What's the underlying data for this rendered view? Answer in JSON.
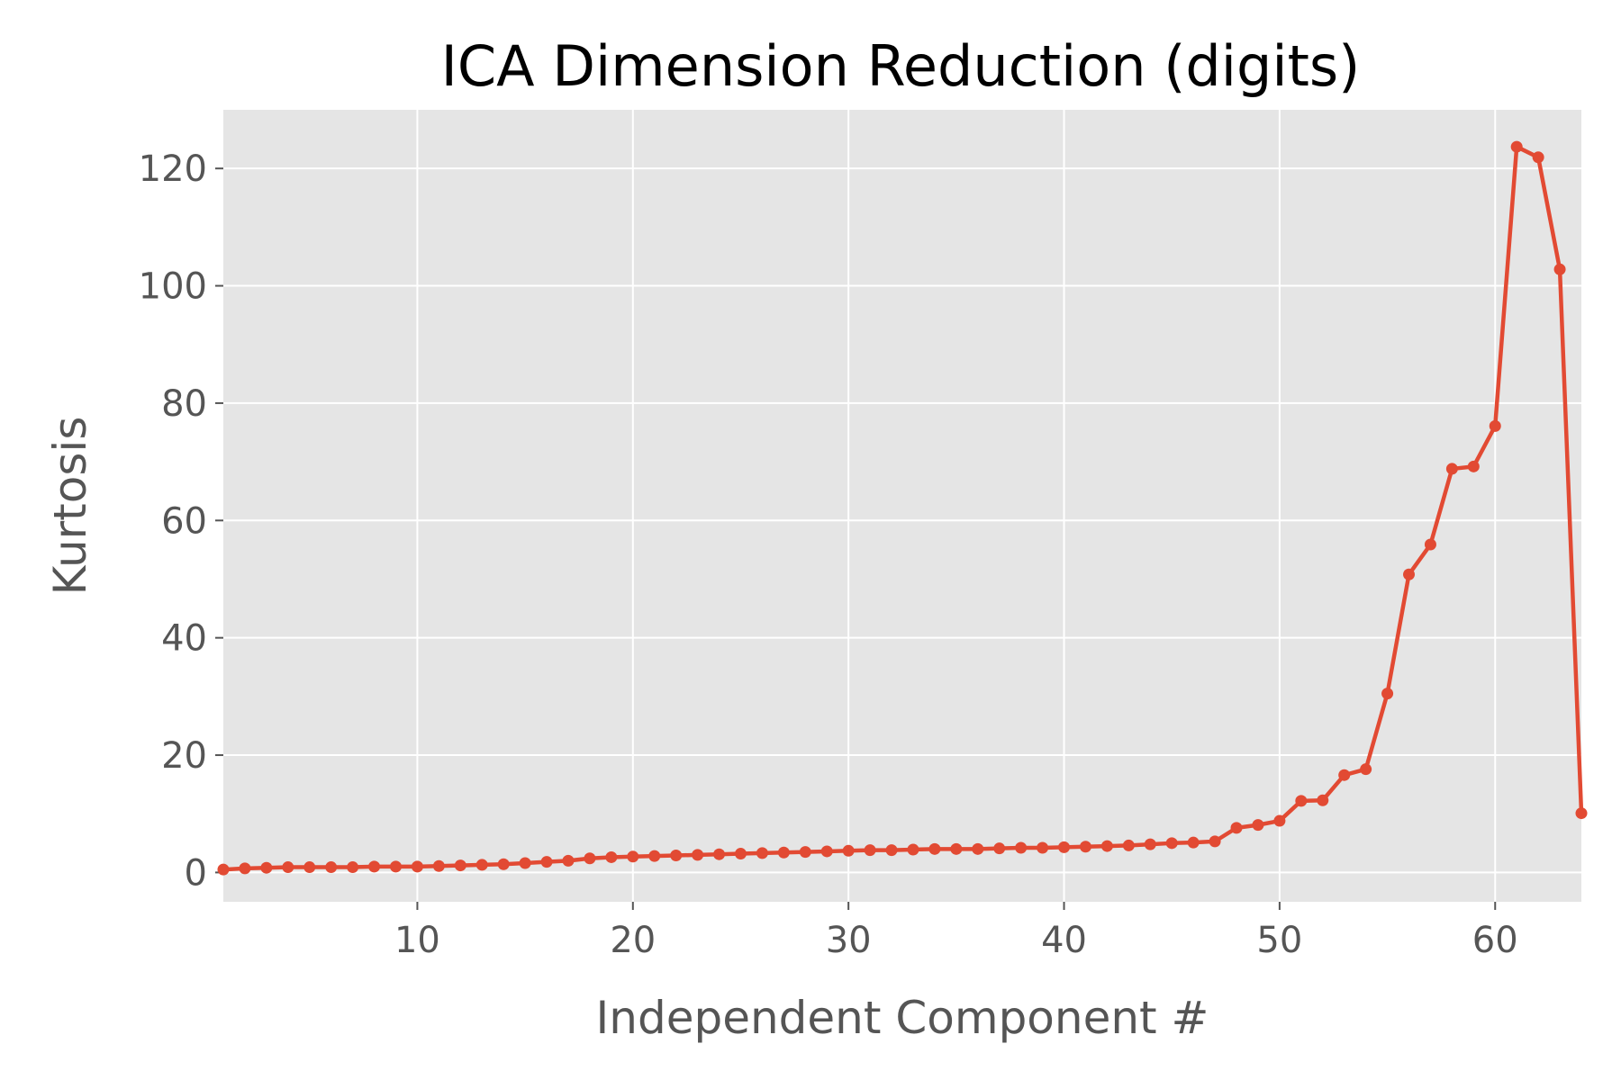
{
  "chart_data": {
    "type": "line",
    "title": "ICA Dimension Reduction (digits)",
    "xlabel": "Independent Component #",
    "ylabel": "Kurtosis",
    "xlim": [
      1,
      64
    ],
    "ylim": [
      -5,
      130
    ],
    "xticks": [
      10,
      20,
      30,
      40,
      50,
      60
    ],
    "yticks": [
      0,
      20,
      40,
      60,
      80,
      100,
      120
    ],
    "grid": true,
    "background_color": "#e5e5e5",
    "grid_color": "#ffffff",
    "series": [
      {
        "color": "#e24a33",
        "marker": "circle",
        "x": [
          1,
          2,
          3,
          4,
          5,
          6,
          7,
          8,
          9,
          10,
          11,
          12,
          13,
          14,
          15,
          16,
          17,
          18,
          19,
          20,
          21,
          22,
          23,
          24,
          25,
          26,
          27,
          28,
          29,
          30,
          31,
          32,
          33,
          34,
          35,
          36,
          37,
          38,
          39,
          40,
          41,
          42,
          43,
          44,
          45,
          46,
          47,
          48,
          49,
          50,
          51,
          52,
          53,
          54,
          55,
          56,
          57,
          58,
          59,
          60,
          61,
          62,
          63,
          64
        ],
        "values": [
          0.5,
          0.7,
          0.8,
          0.9,
          0.9,
          0.9,
          0.9,
          1.0,
          1.0,
          1.0,
          1.1,
          1.2,
          1.3,
          1.4,
          1.6,
          1.8,
          2.0,
          2.4,
          2.6,
          2.7,
          2.8,
          2.9,
          3.0,
          3.1,
          3.2,
          3.3,
          3.4,
          3.5,
          3.6,
          3.7,
          3.8,
          3.8,
          3.9,
          4.0,
          4.0,
          4.0,
          4.1,
          4.2,
          4.2,
          4.3,
          4.4,
          4.5,
          4.6,
          4.8,
          5.0,
          5.1,
          5.3,
          7.6,
          8.1,
          8.8,
          12.2,
          12.3,
          16.6,
          17.6,
          30.5,
          50.8,
          55.9,
          68.8,
          69.2,
          76.1,
          123.7,
          121.9,
          102.8,
          10.1
        ]
      }
    ]
  }
}
